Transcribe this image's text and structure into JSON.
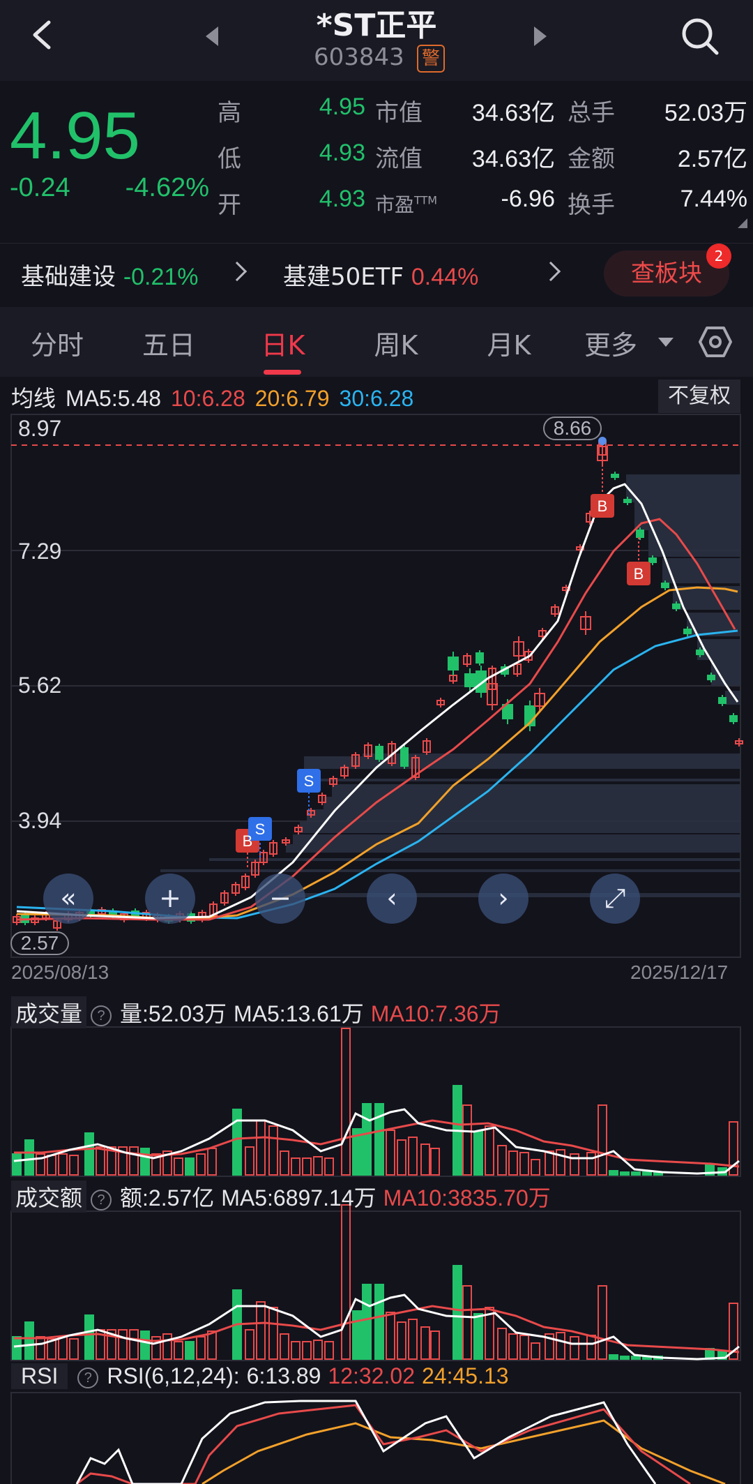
{
  "header": {
    "title": "*ST正平",
    "code": "603843",
    "warning_badge": "警"
  },
  "quote": {
    "price": "4.95",
    "change": "-0.24",
    "change_pct": "-4.62%",
    "high_label": "高",
    "high": "4.95",
    "low_label": "低",
    "low": "4.93",
    "open_label": "开",
    "open": "4.93",
    "mktcap_label": "市值",
    "mktcap": "34.63亿",
    "float_label": "流值",
    "float": "34.63亿",
    "pe_label": "市盈",
    "pe_sup": "TTM",
    "pe": "-6.96",
    "volume_label": "总手",
    "volume": "52.03万",
    "amount_label": "金额",
    "amount": "2.57亿",
    "turnover_label": "换手",
    "turnover": "7.44%"
  },
  "sector": {
    "name1": "基础建设",
    "value1": "-0.21%",
    "name2": "基建50ETF",
    "value2": "0.44%",
    "board_button": "查板块",
    "board_badge": "2"
  },
  "tabs": {
    "items": [
      "分时",
      "五日",
      "日K",
      "周K",
      "月K"
    ],
    "more": "更多",
    "active": "日K"
  },
  "ma": {
    "label": "均线",
    "ma5": "MA5:5.48",
    "ma10": "10:6.28",
    "ma20": "20:6.79",
    "ma30": "30:6.28",
    "adjust": "不复权"
  },
  "kline": {
    "price_labels": [
      "8.97",
      "7.29",
      "5.62",
      "3.94"
    ],
    "high_marker": "8.66",
    "low_marker": "2.57",
    "date_start": "2025/08/13",
    "date_end": "2025/12/17",
    "signals": [
      "S",
      "S",
      "B",
      "B",
      "B"
    ]
  },
  "nav_buttons": [
    "«",
    "+",
    "−",
    "‹",
    "›",
    "⤢"
  ],
  "volume_panel": {
    "name": "成交量",
    "value": "量:52.03万",
    "ma5": "MA5:13.61万",
    "ma10": "MA10:7.36万"
  },
  "amount_panel": {
    "name": "成交额",
    "value": "额:2.57亿",
    "ma5": "MA5:6897.14万",
    "ma10": "MA10:3835.70万"
  },
  "rsi_panel": {
    "name": "RSI",
    "params": "RSI(6,12,24):",
    "rsi6": "6:13.89",
    "rsi12": "12:32.02",
    "rsi24": "24:45.13"
  },
  "colors": {
    "up": "#e84a4a",
    "down": "#21c16a",
    "ma5": "#ffffff",
    "ma10": "#e84a4a",
    "ma20": "#f2a12a",
    "ma30": "#2ab4f0",
    "accent": "#f0394b"
  },
  "icons": [
    "chevron-left-icon",
    "triangle-left-icon",
    "triangle-right-icon",
    "search-icon",
    "chevron-right-icon",
    "caret-down-icon",
    "settings-icon",
    "help-icon"
  ]
}
